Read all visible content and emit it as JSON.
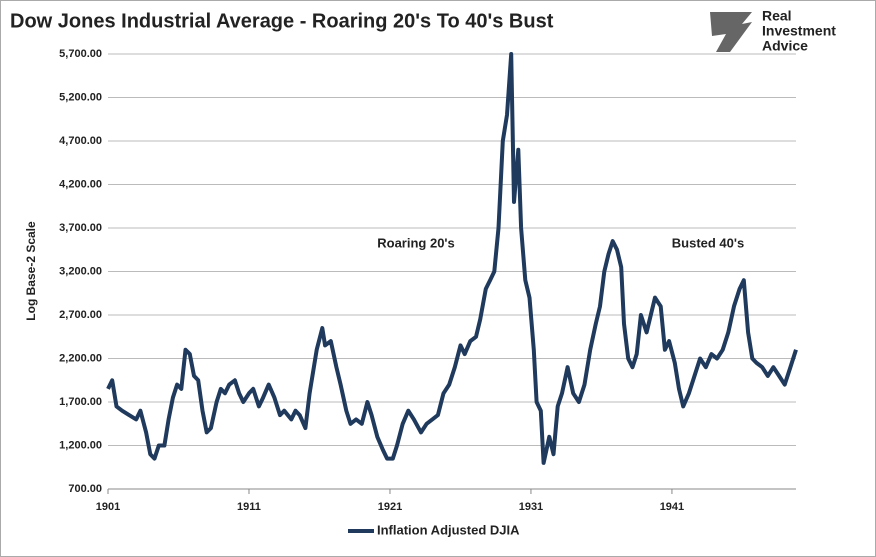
{
  "chart_data": {
    "type": "line",
    "title": "Dow Jones Industrial Average - Roaring 20's To 40's Bust",
    "brand": [
      "Real",
      "Investment",
      "Advice"
    ],
    "ylabel": "Log Base-2 Scale",
    "annotations": [
      "Roaring 20's",
      "Busted 40's"
    ],
    "xlim": [
      1901,
      1949.8
    ],
    "xticks": [
      1901,
      1911,
      1921,
      1931,
      1941
    ],
    "ylim": [
      700,
      5700
    ],
    "yticks": [
      {
        "value": 700,
        "label": "700.00"
      },
      {
        "value": 1200,
        "label": "1,200.00"
      },
      {
        "value": 1700,
        "label": "1,700.00"
      },
      {
        "value": 2200,
        "label": "2,200.00"
      },
      {
        "value": 2700,
        "label": "2,700.00"
      },
      {
        "value": 3200,
        "label": "3,200.00"
      },
      {
        "value": 3700,
        "label": "3,700.00"
      },
      {
        "value": 4200,
        "label": "4,200.00"
      },
      {
        "value": 4700,
        "label": "4,700.00"
      },
      {
        "value": 5200,
        "label": "5,200.00"
      },
      {
        "value": 5700,
        "label": "5,700.00"
      }
    ],
    "grid": true,
    "legend": "bottom",
    "x": [
      1901.0,
      1901.3,
      1901.6,
      1902,
      1902.5,
      1903,
      1903.3,
      1903.7,
      1904,
      1904.3,
      1904.6,
      1905,
      1905.3,
      1905.6,
      1905.9,
      1906.2,
      1906.5,
      1906.8,
      1907.1,
      1907.4,
      1907.7,
      1908,
      1908.3,
      1908.7,
      1909,
      1909.3,
      1909.6,
      1910,
      1910.3,
      1910.6,
      1911,
      1911.3,
      1911.7,
      1912,
      1912.4,
      1912.8,
      1913.2,
      1913.5,
      1914,
      1914.3,
      1914.6,
      1915,
      1915.3,
      1915.8,
      1916.2,
      1916.4,
      1916.8,
      1917.2,
      1917.5,
      1917.9,
      1918.2,
      1918.6,
      1919,
      1919.4,
      1919.7,
      1920.1,
      1920.5,
      1920.8,
      1921.2,
      1921.5,
      1921.9,
      1922.3,
      1922.7,
      1923.2,
      1923.6,
      1924,
      1924.4,
      1924.8,
      1925.2,
      1925.6,
      1926,
      1926.3,
      1926.7,
      1927.1,
      1927.4,
      1927.8,
      1928.1,
      1928.4,
      1928.7,
      1929,
      1929.3,
      1929.6,
      1929.8,
      1930.1,
      1930.3,
      1930.6,
      1930.9,
      1931.2,
      1931.4,
      1931.7,
      1931.9,
      1932.3,
      1932.6,
      1932.9,
      1933.2,
      1933.6,
      1934,
      1934.4,
      1934.8,
      1935.2,
      1935.6,
      1935.9,
      1936.2,
      1936.5,
      1936.8,
      1937.1,
      1937.4,
      1937.6,
      1937.9,
      1938.2,
      1938.5,
      1938.8,
      1939.2,
      1939.5,
      1939.8,
      1940.2,
      1940.5,
      1940.8,
      1941.2,
      1941.5,
      1941.8,
      1942.2,
      1942.6,
      1943,
      1943.4,
      1943.8,
      1944.2,
      1944.6,
      1945,
      1945.4,
      1945.8,
      1946.1,
      1946.4,
      1946.7,
      1947,
      1947.4,
      1947.8,
      1948.2,
      1948.6,
      1949,
      1949.4,
      1949.8
    ],
    "series": [
      {
        "name": "Inflation Adjusted DJIA",
        "color": "#1f3a5c",
        "values": [
          1850,
          1950,
          1650,
          1600,
          1550,
          1500,
          1600,
          1350,
          1100,
          1050,
          1200,
          1200,
          1500,
          1750,
          1900,
          1850,
          2300,
          2250,
          2000,
          1950,
          1600,
          1350,
          1400,
          1700,
          1850,
          1800,
          1900,
          1950,
          1800,
          1700,
          1800,
          1850,
          1650,
          1750,
          1900,
          1750,
          1550,
          1600,
          1500,
          1600,
          1550,
          1400,
          1800,
          2300,
          2550,
          2350,
          2400,
          2100,
          1900,
          1600,
          1450,
          1500,
          1450,
          1700,
          1550,
          1300,
          1150,
          1050,
          1050,
          1200,
          1450,
          1600,
          1500,
          1350,
          1450,
          1500,
          1550,
          1800,
          1900,
          2100,
          2350,
          2250,
          2400,
          2450,
          2650,
          3000,
          3100,
          3200,
          3700,
          4700,
          5000,
          5700,
          4000,
          4600,
          3700,
          3100,
          2900,
          2300,
          1700,
          1600,
          1000,
          1300,
          1100,
          1650,
          1800,
          2100,
          1800,
          1700,
          1900,
          2300,
          2600,
          2800,
          3200,
          3400,
          3550,
          3450,
          3250,
          2600,
          2200,
          2100,
          2250,
          2700,
          2500,
          2700,
          2900,
          2800,
          2300,
          2400,
          2150,
          1850,
          1650,
          1800,
          2000,
          2200,
          2100,
          2250,
          2200,
          2300,
          2500,
          2800,
          3000,
          3100,
          2500,
          2200,
          2150,
          2100,
          2000,
          2100,
          2000,
          1900,
          2100,
          2300
        ]
      }
    ]
  }
}
